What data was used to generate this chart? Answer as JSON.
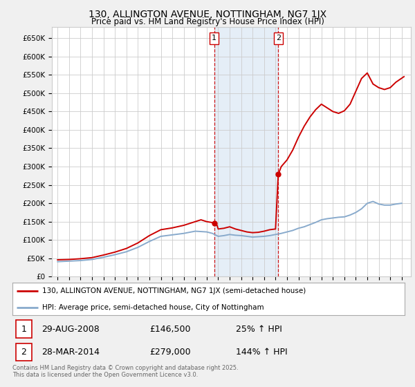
{
  "title": "130, ALLINGTON AVENUE, NOTTINGHAM, NG7 1JX",
  "subtitle": "Price paid vs. HM Land Registry's House Price Index (HPI)",
  "background_color": "#f0f0f0",
  "plot_bg_color": "#ffffff",
  "grid_color": "#cccccc",
  "ylim": [
    0,
    680000
  ],
  "yticks": [
    0,
    50000,
    100000,
    150000,
    200000,
    250000,
    300000,
    350000,
    400000,
    450000,
    500000,
    550000,
    600000,
    650000
  ],
  "xlim_start": 1994.5,
  "xlim_end": 2025.8,
  "red_line_color": "#cc0000",
  "blue_line_color": "#88aacc",
  "sale1_date": 2008.66,
  "sale1_price": 146500,
  "sale2_date": 2014.24,
  "sale2_price": 279000,
  "annotation1_label": "1",
  "annotation2_label": "2",
  "legend_line1": "130, ALLINGTON AVENUE, NOTTINGHAM, NG7 1JX (semi-detached house)",
  "legend_line2": "HPI: Average price, semi-detached house, City of Nottingham",
  "table_row1": [
    "1",
    "29-AUG-2008",
    "£146,500",
    "25% ↑ HPI"
  ],
  "table_row2": [
    "2",
    "28-MAR-2014",
    "£279,000",
    "144% ↑ HPI"
  ],
  "footer": "Contains HM Land Registry data © Crown copyright and database right 2025.\nThis data is licensed under the Open Government Licence v3.0.",
  "shaded_region_color": "#ccdff0",
  "shaded_region_alpha": 0.5,
  "hpi_years": [
    1995,
    1996,
    1997,
    1998,
    1999,
    2000,
    2001,
    2002,
    2003,
    2004,
    2005,
    2006,
    2007,
    2008,
    2008.5,
    2009,
    2009.5,
    2010,
    2010.5,
    2011,
    2011.5,
    2012,
    2012.5,
    2013,
    2013.5,
    2014,
    2014.5,
    2015,
    2015.5,
    2016,
    2016.5,
    2017,
    2017.5,
    2018,
    2018.5,
    2019,
    2019.5,
    2020,
    2020.5,
    2021,
    2021.5,
    2022,
    2022.5,
    2023,
    2023.5,
    2024,
    2024.5,
    2025
  ],
  "hpi_values": [
    41000,
    42500,
    44000,
    47000,
    53000,
    60000,
    68000,
    80000,
    96000,
    110000,
    114000,
    118000,
    124000,
    122000,
    118000,
    110000,
    112000,
    115000,
    113000,
    112000,
    110000,
    108000,
    109000,
    110000,
    112000,
    115000,
    118000,
    122000,
    126000,
    132000,
    136000,
    142000,
    148000,
    155000,
    158000,
    160000,
    162000,
    163000,
    168000,
    175000,
    185000,
    200000,
    205000,
    198000,
    195000,
    195000,
    198000,
    200000
  ],
  "prop_years": [
    1995,
    1996,
    1997,
    1998,
    1999,
    2000,
    2001,
    2002,
    2003,
    2004,
    2005,
    2006,
    2007,
    2007.5,
    2008,
    2008.4,
    2008.66,
    2008.9,
    2009,
    2009.5,
    2010,
    2010.5,
    2011,
    2011.5,
    2012,
    2012.5,
    2013,
    2013.5,
    2014,
    2014.24,
    2014.5,
    2015,
    2015.5,
    2016,
    2016.5,
    2017,
    2017.5,
    2018,
    2018.5,
    2019,
    2019.5,
    2020,
    2020.5,
    2021,
    2021.5,
    2022,
    2022.5,
    2023,
    2023.5,
    2024,
    2024.5,
    2025.2
  ],
  "prop_values": [
    46000,
    47000,
    49000,
    52000,
    59000,
    67000,
    77000,
    92000,
    112000,
    128000,
    133000,
    140000,
    150000,
    155000,
    150000,
    148000,
    146500,
    140000,
    130000,
    132000,
    136000,
    130000,
    126000,
    122000,
    120000,
    121000,
    124000,
    128000,
    130000,
    279000,
    300000,
    318000,
    345000,
    380000,
    410000,
    435000,
    455000,
    470000,
    460000,
    450000,
    445000,
    452000,
    470000,
    505000,
    540000,
    555000,
    525000,
    515000,
    510000,
    515000,
    530000,
    545000
  ]
}
